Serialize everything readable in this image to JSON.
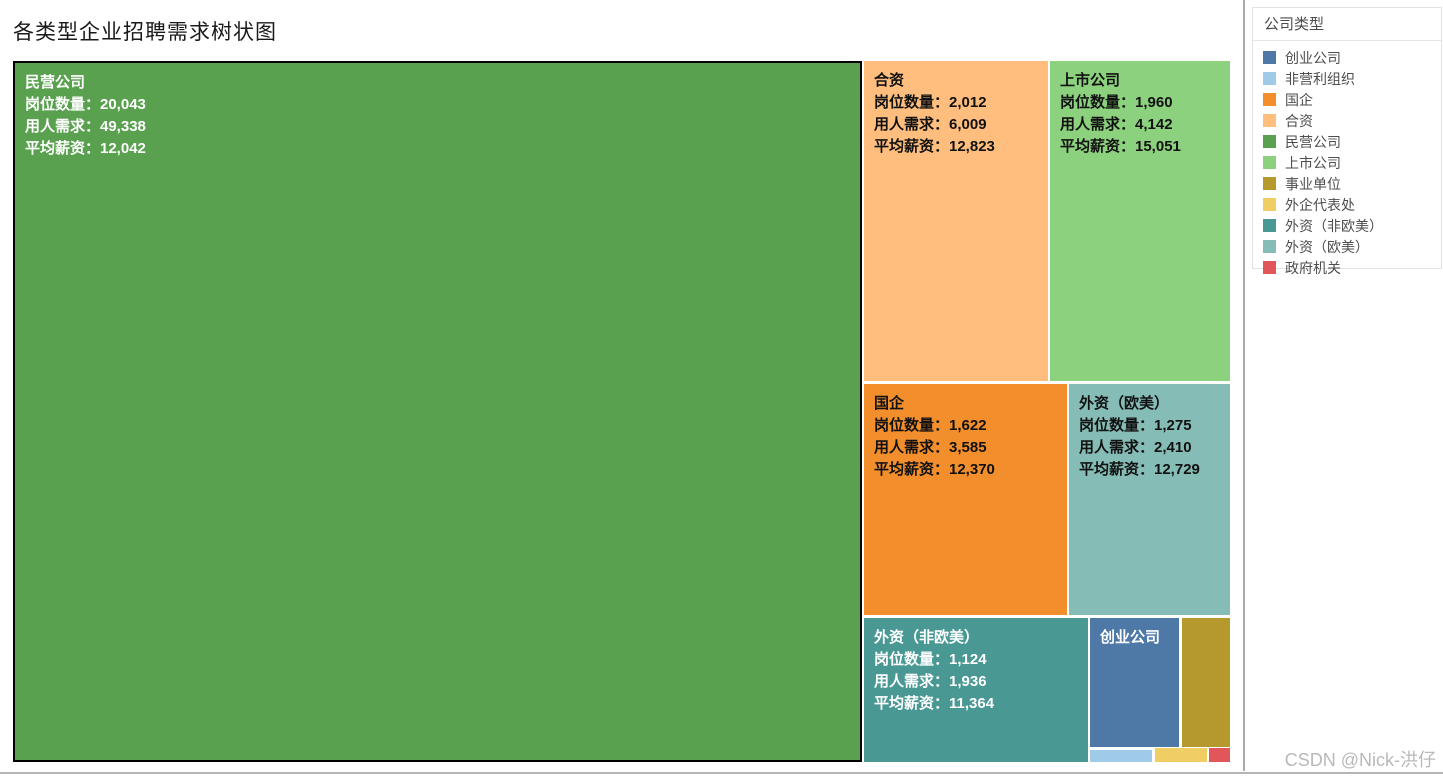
{
  "page": {
    "title": "各类型企业招聘需求树状图",
    "watermark": "CSDN @Nick-洪仔"
  },
  "legend": {
    "title": "公司类型",
    "items": [
      {
        "label": "创业公司",
        "color": "#4e79a7"
      },
      {
        "label": "非营利组织",
        "color": "#a0cbe8"
      },
      {
        "label": "国企",
        "color": "#f28e2b"
      },
      {
        "label": "合资",
        "color": "#ffbe7d"
      },
      {
        "label": "民营公司",
        "color": "#59a14f"
      },
      {
        "label": "上市公司",
        "color": "#8cd17d"
      },
      {
        "label": "事业单位",
        "color": "#b6992d"
      },
      {
        "label": "外企代表处",
        "color": "#f1ce63"
      },
      {
        "label": "外资（非欧美）",
        "color": "#499894"
      },
      {
        "label": "外资（欧美）",
        "color": "#86bcb6"
      },
      {
        "label": "政府机关",
        "color": "#e15759"
      }
    ]
  },
  "treemap": {
    "cells": [
      {
        "name": "民营公司",
        "label": "民营公司",
        "color": "#59a14f",
        "lines": [
          "岗位数量：20,043",
          "用人需求：49,338",
          "平均薪资：12,042"
        ]
      },
      {
        "name": "合资",
        "label": "合资",
        "color": "#ffbe7d",
        "lines": [
          "岗位数量：2,012",
          "用人需求：6,009",
          "平均薪资：12,823"
        ]
      },
      {
        "name": "上市公司",
        "label": "上市公司",
        "color": "#8cd17d",
        "lines": [
          "岗位数量：1,960",
          "用人需求：4,142",
          "平均薪资：15,051"
        ]
      },
      {
        "name": "国企",
        "label": "国企",
        "color": "#f28e2b",
        "lines": [
          "岗位数量：1,622",
          "用人需求：3,585",
          "平均薪资：12,370"
        ]
      },
      {
        "name": "外资（欧美）",
        "label": "外资（欧美）",
        "color": "#86bcb6",
        "lines": [
          "岗位数量：1,275",
          "用人需求：2,410",
          "平均薪资：12,729"
        ]
      },
      {
        "name": "外资（非欧美）",
        "label": "外资（非欧美）",
        "color": "#499894",
        "lines": [
          "岗位数量：1,124",
          "用人需求：1,936",
          "平均薪资：11,364"
        ]
      },
      {
        "name": "创业公司",
        "label": "创业公司",
        "color": "#4e79a7",
        "lines": []
      },
      {
        "name": "事业单位",
        "label": "",
        "color": "#b6992d",
        "lines": []
      },
      {
        "name": "非营利组织",
        "label": "",
        "color": "#a0cbe8",
        "lines": []
      },
      {
        "name": "外企代表处",
        "label": "",
        "color": "#f1ce63",
        "lines": []
      },
      {
        "name": "政府机关",
        "label": "",
        "color": "#e15759",
        "lines": []
      }
    ]
  },
  "chart_data": {
    "type": "treemap",
    "title": "各类型企业招聘需求树状图",
    "legend_title": "公司类型",
    "legend_position": "right",
    "metrics": [
      "岗位数量",
      "用人需求",
      "平均薪资"
    ],
    "nodes": [
      {
        "name": "民营公司",
        "岗位数量": 20043,
        "用人需求": 49338,
        "平均薪资": 12042
      },
      {
        "name": "合资",
        "岗位数量": 2012,
        "用人需求": 6009,
        "平均薪资": 12823
      },
      {
        "name": "上市公司",
        "岗位数量": 1960,
        "用人需求": 4142,
        "平均薪资": 15051
      },
      {
        "name": "国企",
        "岗位数量": 1622,
        "用人需求": 3585,
        "平均薪资": 12370
      },
      {
        "name": "外资（欧美）",
        "岗位数量": 1275,
        "用人需求": 2410,
        "平均薪资": 12729
      },
      {
        "name": "外资（非欧美）",
        "岗位数量": 1124,
        "用人需求": 1936,
        "平均薪资": 11364
      },
      {
        "name": "创业公司"
      },
      {
        "name": "事业单位"
      },
      {
        "name": "非营利组织"
      },
      {
        "name": "外企代表处"
      },
      {
        "name": "政府机关"
      }
    ],
    "size_encoding": "岗位数量",
    "color_encoding": "公司类型"
  }
}
